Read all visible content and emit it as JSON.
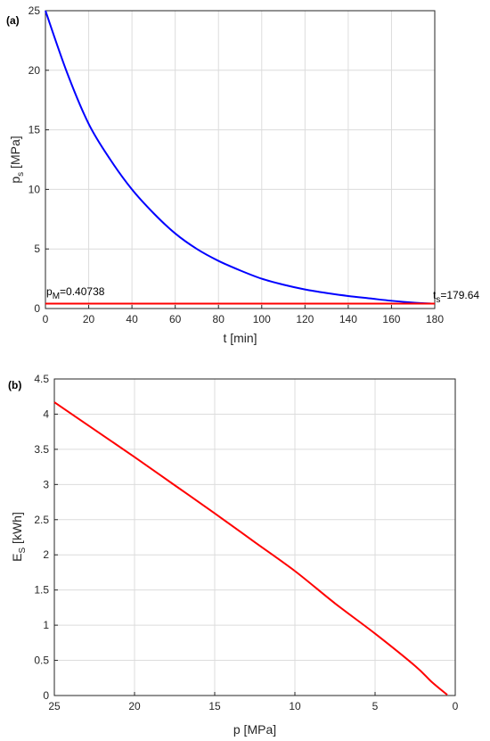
{
  "chart_data": [
    {
      "panel_label": "(a)",
      "type": "line",
      "xlabel": "t [min]",
      "ylabel": "p",
      "ylabel_sub": "s",
      "ylabel_unit": " [MPa]",
      "xlim": [
        0,
        180
      ],
      "ylim": [
        0,
        25
      ],
      "xticks": [
        0,
        20,
        40,
        60,
        80,
        100,
        120,
        140,
        160,
        180
      ],
      "yticks": [
        0,
        5,
        10,
        15,
        20,
        25
      ],
      "grid": true,
      "series": [
        {
          "color": "#0000ff",
          "x": [
            0,
            10,
            20,
            30,
            40,
            50,
            60,
            70,
            80,
            90,
            100,
            110,
            120,
            130,
            140,
            150,
            160,
            170,
            179.64
          ],
          "y": [
            25,
            19.8,
            15.5,
            12.5,
            10.0,
            8.0,
            6.3,
            5.0,
            4.0,
            3.2,
            2.5,
            2.0,
            1.6,
            1.3,
            1.05,
            0.85,
            0.65,
            0.5,
            0.41
          ]
        },
        {
          "color": "#ff0000",
          "x": [
            0,
            180
          ],
          "y": [
            0.40738,
            0.40738
          ]
        }
      ],
      "annotations": [
        {
          "main": "p",
          "sub": "M",
          "rest": "=0.40738"
        },
        {
          "main": "t",
          "sub": "s",
          "rest": "=179.64"
        }
      ]
    },
    {
      "panel_label": "(b)",
      "type": "line",
      "xlabel": "p [MPa]",
      "ylabel": "E",
      "ylabel_sub": "S",
      "ylabel_unit": " [kWh]",
      "xlim": [
        25,
        0
      ],
      "x_reversed": true,
      "ylim": [
        0,
        4.5
      ],
      "xticks": [
        25,
        20,
        15,
        10,
        5,
        0
      ],
      "yticks": [
        0,
        0.5,
        1,
        1.5,
        2,
        2.5,
        3,
        3.5,
        4,
        4.5
      ],
      "grid": true,
      "series": [
        {
          "color": "#ff0000",
          "x": [
            25,
            22.5,
            20,
            17.5,
            15,
            12.5,
            10,
            7.5,
            5,
            2.5,
            1.5,
            0.5
          ],
          "y": [
            4.17,
            3.78,
            3.39,
            2.99,
            2.59,
            2.18,
            1.77,
            1.31,
            0.88,
            0.42,
            0.2,
            0.01
          ]
        }
      ]
    }
  ]
}
